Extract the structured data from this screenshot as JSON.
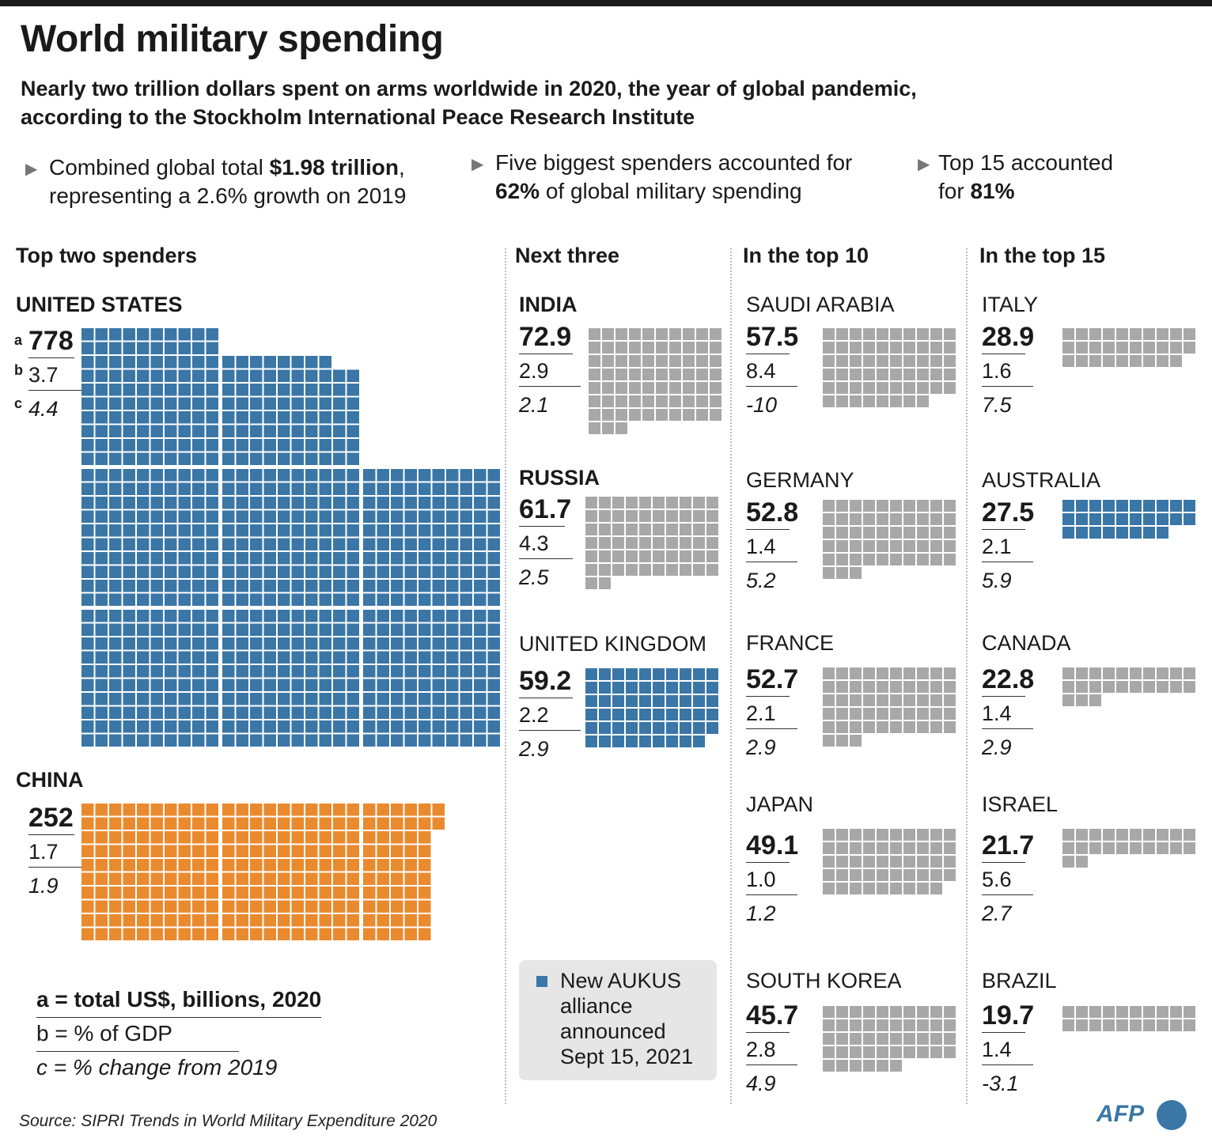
{
  "title": "World military spending",
  "subtitle_line1": "Nearly two trillion dollars spent on arms worldwide in 2020, the year of global pandemic,",
  "subtitle_line2": "according to the Stockholm International Peace Research Institute",
  "facts": [
    {
      "l1a": "Combined global total ",
      "l1b": "$1.98 trillion",
      "l1c": ",",
      "l2a": "representing a 2.6% growth on 2019",
      "l2b": ""
    },
    {
      "l1a": "Five biggest spenders accounted for",
      "l1b": "",
      "l1c": "",
      "l2a": "62%",
      "l2b": " of global military spending"
    },
    {
      "l1a": "Top 15 accounted",
      "l1b": "",
      "l1c": "",
      "l2a": "for ",
      "l2b": "81%"
    }
  ],
  "columns": [
    "Top two spenders",
    "Next three",
    "In the top 10",
    "In the top 15"
  ],
  "labels_abc": [
    "a",
    "b",
    "c"
  ],
  "colors": {
    "blue": "#3a76a6",
    "orange": "#ea8a2e",
    "gray": "#a8a8a8",
    "text": "#1a1a1a"
  },
  "chart_data": {
    "type": "waffle",
    "unit": "each square = US$ 1 billion",
    "countries": [
      {
        "name": "UNITED STATES",
        "a": "778",
        "b": "3.7",
        "c": "4.4",
        "value": 778,
        "color": "blue",
        "aukus": true
      },
      {
        "name": "CHINA",
        "a": "252",
        "b": "1.7",
        "c": "1.9",
        "value": 252,
        "color": "orange"
      },
      {
        "name": "INDIA",
        "a": "72.9",
        "b": "2.9",
        "c": "2.1",
        "value": 73,
        "color": "gray"
      },
      {
        "name": "RUSSIA",
        "a": "61.7",
        "b": "4.3",
        "c": "2.5",
        "value": 62,
        "color": "gray"
      },
      {
        "name": "UNITED KINGDOM",
        "a": "59.2",
        "b": "2.2",
        "c": "2.9",
        "value": 59,
        "color": "blue",
        "aukus": true
      },
      {
        "name": "SAUDI ARABIA",
        "a": "57.5",
        "b": "8.4",
        "c": "-10",
        "value": 58,
        "color": "gray"
      },
      {
        "name": "GERMANY",
        "a": "52.8",
        "b": "1.4",
        "c": "5.2",
        "value": 53,
        "color": "gray"
      },
      {
        "name": "FRANCE",
        "a": "52.7",
        "b": "2.1",
        "c": "2.9",
        "value": 53,
        "color": "gray"
      },
      {
        "name": "JAPAN",
        "a": "49.1",
        "b": "1.0",
        "c": "1.2",
        "value": 49,
        "color": "gray"
      },
      {
        "name": "SOUTH KOREA",
        "a": "45.7",
        "b": "2.8",
        "c": "4.9",
        "value": 46,
        "color": "gray"
      },
      {
        "name": "ITALY",
        "a": "28.9",
        "b": "1.6",
        "c": "7.5",
        "value": 29,
        "color": "gray"
      },
      {
        "name": "AUSTRALIA",
        "a": "27.5",
        "b": "2.1",
        "c": "5.9",
        "value": 28,
        "color": "blue",
        "aukus": true
      },
      {
        "name": "CANADA",
        "a": "22.8",
        "b": "1.4",
        "c": "2.9",
        "value": 23,
        "color": "gray"
      },
      {
        "name": "ISRAEL",
        "a": "21.7",
        "b": "5.6",
        "c": "2.7",
        "value": 22,
        "color": "gray"
      },
      {
        "name": "BRAZIL",
        "a": "19.7",
        "b": "1.4",
        "c": "-3.1",
        "value": 20,
        "color": "gray"
      }
    ]
  },
  "key": {
    "a": "a = total US$, billions, 2020",
    "b": "b = % of GDP",
    "c": "c = % change from 2019"
  },
  "aukus_note": "New AUKUS alliance announced Sept 15, 2021",
  "source": "Source: SIPRI Trends in World Military Expenditure 2020",
  "logo": "AFP"
}
